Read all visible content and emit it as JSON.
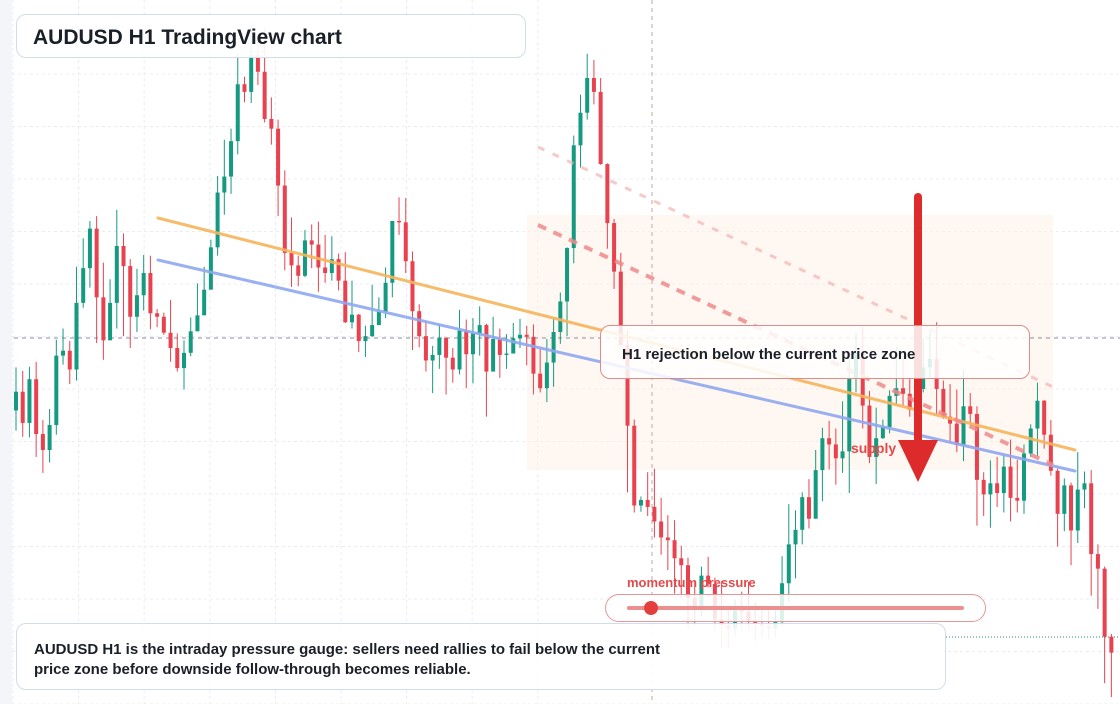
{
  "header": {
    "title": "AUDUSD H1 TradingView chart"
  },
  "annotation": {
    "text": "H1 rejection below the current price zone"
  },
  "supply_label": "supply",
  "gauge": {
    "label": "momentum pressure",
    "value": 0.07
  },
  "caption": {
    "text": "AUDUSD H1 is the intraday pressure gauge: sellers need rallies to fail below the current price zone before downside follow-through becomes reliable."
  },
  "colors": {
    "bull": "#149a80",
    "bear": "#e8424f",
    "grid": "#e8ecf3",
    "trend_orange": "#f5b55d",
    "trend_blue": "#8ea8f0",
    "dashed_red": "#ee8a8a",
    "dashed_pink": "#f5b4b4",
    "arrow": "#dd2a2a",
    "zone": "#fff1e6"
  },
  "chart_data": {
    "type": "candlestick",
    "timeframe": "H1",
    "symbol": "AUDUSD",
    "y_scale": [
      0,
      100
    ],
    "candles": [
      [
        42.3,
        45.0,
        48.5,
        39.4
      ],
      [
        45.0,
        40.5,
        48.0,
        38.5
      ],
      [
        40.5,
        46.8,
        48.6,
        38.4
      ],
      [
        46.8,
        38.9,
        49.3,
        35.6
      ],
      [
        38.9,
        36.6,
        40.9,
        33.3
      ],
      [
        36.6,
        40.2,
        42.5,
        34.8
      ],
      [
        40.2,
        50.2,
        52.5,
        38.8
      ],
      [
        50.2,
        50.9,
        54.1,
        48.9
      ],
      [
        50.9,
        48.2,
        52.3,
        46.1
      ],
      [
        48.2,
        57.8,
        63.0,
        46.6
      ],
      [
        57.8,
        62.8,
        67.1,
        57.1
      ],
      [
        62.8,
        68.5,
        69.6,
        60.0
      ],
      [
        68.5,
        58.6,
        70.3,
        52.0
      ],
      [
        58.6,
        52.4,
        63.6,
        49.6
      ],
      [
        52.4,
        57.8,
        61.2,
        55.8
      ],
      [
        57.8,
        66.0,
        71.2,
        54.1
      ],
      [
        66.0,
        63.1,
        67.8,
        53.0
      ],
      [
        63.1,
        55.8,
        64.1,
        51.3
      ],
      [
        55.8,
        58.9,
        62.7,
        53.6
      ],
      [
        58.9,
        62.1,
        64.7,
        56.7
      ],
      [
        62.1,
        56.3,
        64.6,
        54.0
      ],
      [
        56.3,
        55.8,
        56.9,
        54.3
      ],
      [
        55.8,
        53.5,
        56.4,
        53.2
      ],
      [
        53.5,
        51.3,
        58.2,
        49.3
      ],
      [
        51.3,
        48.4,
        53.4,
        47.9
      ],
      [
        48.4,
        50.6,
        52.4,
        45.3
      ],
      [
        50.6,
        53.7,
        55.7,
        50.1
      ],
      [
        53.7,
        56.0,
        60.6,
        53.7
      ],
      [
        56.0,
        59.7,
        63.0,
        57.6
      ],
      [
        59.7,
        65.8,
        66.9,
        59.9
      ],
      [
        65.8,
        73.7,
        76.1,
        64.6
      ],
      [
        73.7,
        76.0,
        81.3,
        70.5
      ],
      [
        76.0,
        81.1,
        82.9,
        73.5
      ],
      [
        81.1,
        89.3,
        93.8,
        79.2
      ],
      [
        89.3,
        88.2,
        90.4,
        86.7
      ],
      [
        88.2,
        93.5,
        98.1,
        86.6
      ],
      [
        93.5,
        91.1,
        95.2,
        89.2
      ],
      [
        91.1,
        84.3,
        97.4,
        83.8
      ],
      [
        84.3,
        82.9,
        87.4,
        80.6
      ],
      [
        82.9,
        74.7,
        84.2,
        70.3
      ],
      [
        74.7,
        65.0,
        76.9,
        62.5
      ],
      [
        65.0,
        63.2,
        70.1,
        60.1
      ],
      [
        63.2,
        61.7,
        64.6,
        60.2
      ],
      [
        61.7,
        66.8,
        68.3,
        61.5
      ],
      [
        66.8,
        66.2,
        69.1,
        62.8
      ],
      [
        66.2,
        62.9,
        69.5,
        59.4
      ],
      [
        62.9,
        62.1,
        67.6,
        60.7
      ],
      [
        62.1,
        64.1,
        67.4,
        61.0
      ],
      [
        64.1,
        61.0,
        64.9,
        59.6
      ],
      [
        61.0,
        55.0,
        65.1,
        54.9
      ],
      [
        55.0,
        56.1,
        61.0,
        54.1
      ],
      [
        56.1,
        52.3,
        56.2,
        50.7
      ],
      [
        52.3,
        53.0,
        54.5,
        50.0
      ],
      [
        53.0,
        54.6,
        60.4,
        52.9
      ],
      [
        54.6,
        56.5,
        58.6,
        55.3
      ],
      [
        56.5,
        60.7,
        62.9,
        55.6
      ],
      [
        60.7,
        69.6,
        69.6,
        58.6
      ],
      [
        69.6,
        69.4,
        73.0,
        67.6
      ],
      [
        69.4,
        63.8,
        72.9,
        62.1
      ],
      [
        63.8,
        56.6,
        65.2,
        51.0
      ],
      [
        56.6,
        53.0,
        57.6,
        51.4
      ],
      [
        53.0,
        49.5,
        55.1,
        47.9
      ],
      [
        49.5,
        50.3,
        51.6,
        44.8
      ],
      [
        50.3,
        52.8,
        54.7,
        48.3
      ],
      [
        52.8,
        49.9,
        52.8,
        44.6
      ],
      [
        49.9,
        48.2,
        51.3,
        46.3
      ],
      [
        48.2,
        53.8,
        56.8,
        47.5
      ],
      [
        53.8,
        50.4,
        55.4,
        45.5
      ],
      [
        50.4,
        53.4,
        55.6,
        46.2
      ],
      [
        53.4,
        54.6,
        57.3,
        50.2
      ],
      [
        54.6,
        47.9,
        54.8,
        41.4
      ],
      [
        47.9,
        52.6,
        55.8,
        50.6
      ],
      [
        52.6,
        50.3,
        54.1,
        47.0
      ],
      [
        50.3,
        50.5,
        53.3,
        48.3
      ],
      [
        50.5,
        52.7,
        54.9,
        51.9
      ],
      [
        52.7,
        53.2,
        55.5,
        51.3
      ],
      [
        53.2,
        52.9,
        54.5,
        48.8
      ],
      [
        52.9,
        47.6,
        54.7,
        44.6
      ],
      [
        47.6,
        45.5,
        51.1,
        44.9
      ],
      [
        45.5,
        49.2,
        52.6,
        43.5
      ],
      [
        49.2,
        53.6,
        55.6,
        45.7
      ],
      [
        53.6,
        58.0,
        59.3,
        51.9
      ],
      [
        58.0,
        65.7,
        65.8,
        53.0
      ],
      [
        65.7,
        80.5,
        81.9,
        63.5
      ],
      [
        80.5,
        85.2,
        87.8,
        77.3
      ],
      [
        85.2,
        90.2,
        93.7,
        84.2
      ],
      [
        90.2,
        88.2,
        92.8,
        86.4
      ],
      [
        88.2,
        77.8,
        90.2,
        77.7
      ],
      [
        77.8,
        69.3,
        77.9,
        65.6
      ],
      [
        69.3,
        62.3,
        69.9,
        59.8
      ],
      [
        62.3,
        51.7,
        65.0,
        51.7
      ],
      [
        51.7,
        40.1,
        53.8,
        30.5
      ],
      [
        40.1,
        28.6,
        41.0,
        27.6
      ],
      [
        28.6,
        29.4,
        29.9,
        27.7
      ],
      [
        29.4,
        28.4,
        33.4,
        27.1
      ],
      [
        28.4,
        26.3,
        33.9,
        24.0
      ],
      [
        26.3,
        24.0,
        29.7,
        21.5
      ],
      [
        24.0,
        23.6,
        27.2,
        19.3
      ],
      [
        23.6,
        21.0,
        26.5,
        15.9
      ],
      [
        21.0,
        20.0,
        22.8,
        15.2
      ],
      [
        20.0,
        15.3,
        21.1,
        10.8
      ],
      [
        15.3,
        13.8,
        17.8,
        11.4
      ],
      [
        13.8,
        18.5,
        19.8,
        12.7
      ],
      [
        18.5,
        17.3,
        21.2,
        16.8
      ],
      [
        17.3,
        12.2,
        18.2,
        10.7
      ],
      [
        12.2,
        11.4,
        17.7,
        8.1
      ],
      [
        11.4,
        10.8,
        13.5,
        8.0
      ],
      [
        10.8,
        14.0,
        15.1,
        9.7
      ],
      [
        14.0,
        13.3,
        16.2,
        10.5
      ],
      [
        13.3,
        11.8,
        17.6,
        10.8
      ],
      [
        11.8,
        11.6,
        14.7,
        9.1
      ],
      [
        11.6,
        11.2,
        13.6,
        9.5
      ],
      [
        11.2,
        10.9,
        13.8,
        9.3
      ],
      [
        10.9,
        11.8,
        14.2,
        9.7
      ],
      [
        11.8,
        17.4,
        21.3,
        11.1
      ],
      [
        17.4,
        23.0,
        28.8,
        14.6
      ],
      [
        23.0,
        25.1,
        27.9,
        18.1
      ],
      [
        25.1,
        29.8,
        30.5,
        23.0
      ],
      [
        29.8,
        26.7,
        32.4,
        25.3
      ],
      [
        26.7,
        33.7,
        36.6,
        26.7
      ],
      [
        33.7,
        38.3,
        39.8,
        29.2
      ],
      [
        38.3,
        37.4,
        40.8,
        33.8
      ],
      [
        37.4,
        35.4,
        39.7,
        31.6
      ],
      [
        35.4,
        36.4,
        43.6,
        33.3
      ],
      [
        36.4,
        47.0,
        49.7,
        30.4
      ],
      [
        47.0,
        50.8,
        53.5,
        44.9
      ],
      [
        50.8,
        43.0,
        54.3,
        39.7
      ],
      [
        43.0,
        35.6,
        45.1,
        34.7
      ],
      [
        35.6,
        38.3,
        42.7,
        31.7
      ],
      [
        38.3,
        39.9,
        41.0,
        38.2
      ],
      [
        39.9,
        44.4,
        45.2,
        39.0
      ],
      [
        44.4,
        45.5,
        51.5,
        43.2
      ],
      [
        45.5,
        44.7,
        50.2,
        43.0
      ],
      [
        44.7,
        42.4,
        46.8,
        41.4
      ],
      [
        42.4,
        45.4,
        48.0,
        39.5
      ],
      [
        45.4,
        48.5,
        52.7,
        44.9
      ],
      [
        48.5,
        49.7,
        54.0,
        46.9
      ],
      [
        49.7,
        45.4,
        55.0,
        41.6
      ],
      [
        45.4,
        41.4,
        46.6,
        41.1
      ],
      [
        41.4,
        40.4,
        46.1,
        37.6
      ],
      [
        40.4,
        37.3,
        45.3,
        36.3
      ],
      [
        37.3,
        42.9,
        48.1,
        35.0
      ],
      [
        42.9,
        41.8,
        44.8,
        40.4
      ],
      [
        41.8,
        32.3,
        42.9,
        25.7
      ],
      [
        32.3,
        30.2,
        33.4,
        27.1
      ],
      [
        30.2,
        31.8,
        35.1,
        25.4
      ],
      [
        31.8,
        30.4,
        35.6,
        28.4
      ],
      [
        30.4,
        34.2,
        35.8,
        27.6
      ],
      [
        34.2,
        29.7,
        38.1,
        26.3
      ],
      [
        29.7,
        29.3,
        35.2,
        27.6
      ],
      [
        29.3,
        36.1,
        37.4,
        27.4
      ],
      [
        36.1,
        39.7,
        40.3,
        35.6
      ],
      [
        39.7,
        43.7,
        46.3,
        35.7
      ],
      [
        43.7,
        38.8,
        43.8,
        36.8
      ],
      [
        38.8,
        33.6,
        40.9,
        32.9
      ],
      [
        33.6,
        27.4,
        33.9,
        22.7
      ],
      [
        27.4,
        31.5,
        32.5,
        24.9
      ],
      [
        31.5,
        25.0,
        31.9,
        20.0
      ],
      [
        25.0,
        30.9,
        36.3,
        23.2
      ],
      [
        30.9,
        31.8,
        33.5,
        28.2
      ],
      [
        31.8,
        21.6,
        33.7,
        15.6
      ],
      [
        21.6,
        19.5,
        23.0,
        13.7
      ],
      [
        19.5,
        9.7,
        19.8,
        3.0
      ],
      [
        9.7,
        7.4,
        10.1,
        1.0
      ]
    ]
  }
}
